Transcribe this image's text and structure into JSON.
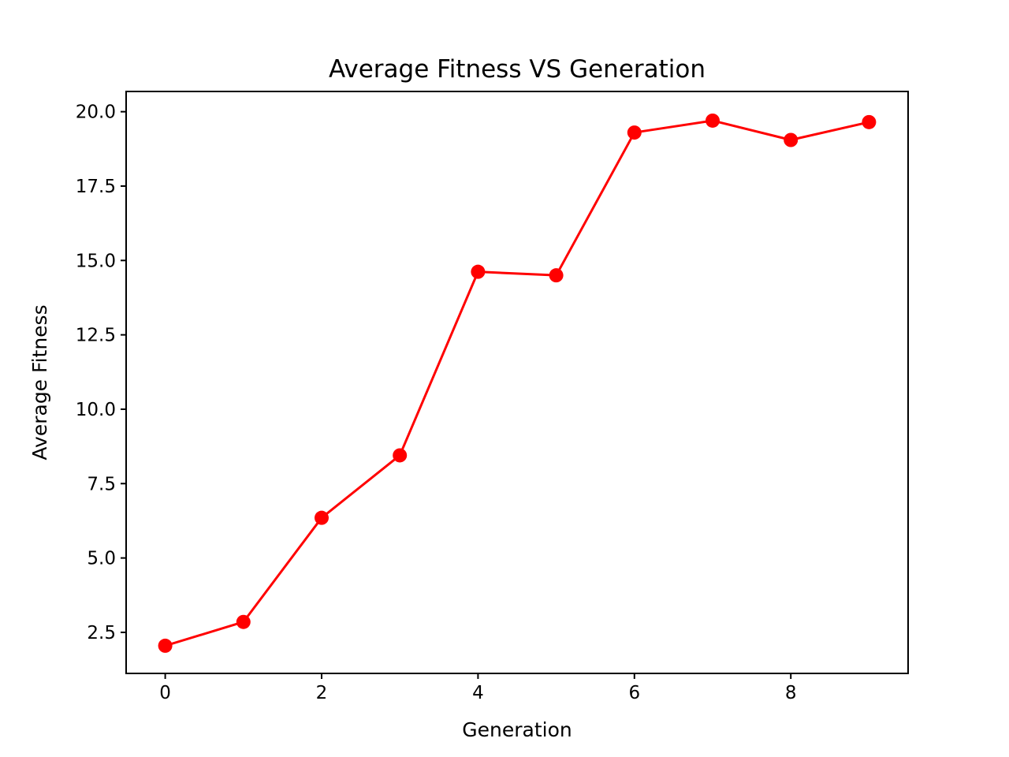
{
  "chart_data": {
    "type": "line",
    "title": "Average Fitness VS Generation",
    "xlabel": "Generation",
    "ylabel": "Average Fitness",
    "x": [
      0,
      1,
      2,
      3,
      4,
      5,
      6,
      7,
      8,
      9
    ],
    "series": [
      {
        "values": [
          2.05,
          2.85,
          6.35,
          8.45,
          14.62,
          14.5,
          19.3,
          19.7,
          19.05,
          19.65
        ],
        "color": "#ff0000",
        "marker": "circle"
      }
    ],
    "xlim": [
      -0.5,
      9.5
    ],
    "ylim": [
      1.12,
      20.68
    ],
    "xticks": [
      0,
      2,
      4,
      6,
      8
    ],
    "xtick_labels": [
      "0",
      "2",
      "4",
      "6",
      "8"
    ],
    "yticks": [
      2.5,
      5.0,
      7.5,
      10.0,
      12.5,
      15.0,
      17.5,
      20.0
    ],
    "ytick_labels": [
      "2.5",
      "5.0",
      "7.5",
      "10.0",
      "12.5",
      "15.0",
      "17.5",
      "20.0"
    ],
    "grid": false,
    "legend": false
  }
}
